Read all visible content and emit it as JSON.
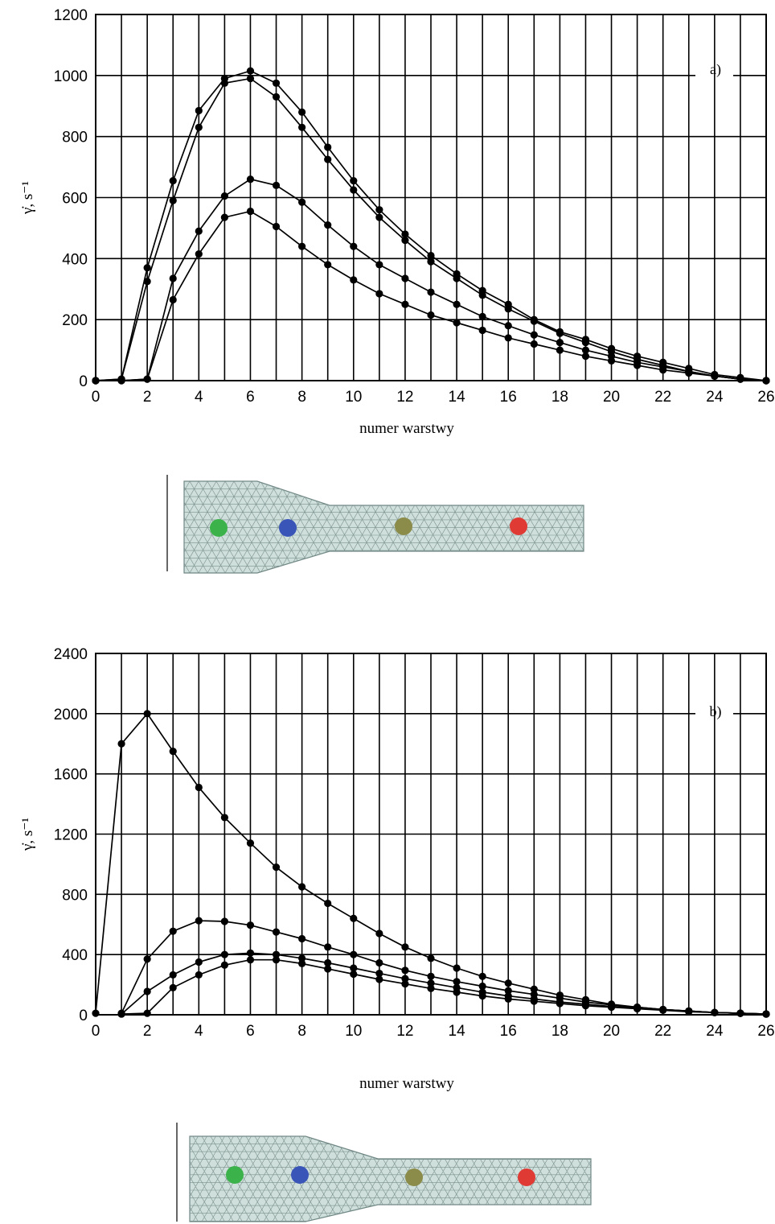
{
  "chart_data": [
    {
      "type": "line",
      "panel_label": "a)",
      "xlabel": "numer warstwy",
      "ylabel": "γ̇, s⁻¹",
      "xlim": [
        0,
        26
      ],
      "ylim": [
        0,
        1200
      ],
      "x_ticks": [
        0,
        2,
        4,
        6,
        8,
        10,
        12,
        14,
        16,
        18,
        20,
        22,
        24,
        26
      ],
      "y_ticks": [
        0,
        200,
        400,
        600,
        800,
        1000,
        1200
      ],
      "grid": true,
      "series": [
        {
          "x": [
            0,
            1,
            2,
            3,
            4,
            5,
            6,
            7,
            8,
            9,
            10,
            11,
            12,
            13,
            14,
            15,
            16,
            17,
            18,
            19,
            20,
            21,
            22,
            23,
            24,
            25,
            26
          ],
          "values": [
            0,
            5,
            370,
            655,
            885,
            990,
            1015,
            975,
            880,
            765,
            655,
            560,
            480,
            410,
            350,
            295,
            250,
            200,
            160,
            135,
            105,
            80,
            60,
            40,
            20,
            10,
            0
          ]
        },
        {
          "x": [
            0,
            1,
            2,
            3,
            4,
            5,
            6,
            7,
            8,
            9,
            10,
            11,
            12,
            13,
            14,
            15,
            16,
            17,
            18,
            19,
            20,
            21,
            22,
            23,
            24,
            25,
            26
          ],
          "values": [
            0,
            5,
            325,
            590,
            830,
            975,
            990,
            930,
            830,
            725,
            625,
            535,
            460,
            390,
            335,
            280,
            235,
            195,
            155,
            125,
            95,
            70,
            50,
            30,
            15,
            5,
            0
          ]
        },
        {
          "x": [
            0,
            1,
            2,
            3,
            4,
            5,
            6,
            7,
            8,
            9,
            10,
            11,
            12,
            13,
            14,
            15,
            16,
            17,
            18,
            19,
            20,
            21,
            22,
            23,
            24,
            25,
            26
          ],
          "values": [
            0,
            0,
            5,
            335,
            490,
            605,
            660,
            640,
            585,
            510,
            440,
            380,
            335,
            290,
            250,
            210,
            180,
            150,
            125,
            100,
            80,
            60,
            45,
            30,
            15,
            5,
            0
          ]
        },
        {
          "x": [
            0,
            1,
            2,
            3,
            4,
            5,
            6,
            7,
            8,
            9,
            10,
            11,
            12,
            13,
            14,
            15,
            16,
            17,
            18,
            19,
            20,
            21,
            22,
            23,
            24,
            25,
            26
          ],
          "values": [
            0,
            0,
            5,
            265,
            415,
            535,
            555,
            505,
            440,
            380,
            330,
            285,
            250,
            215,
            190,
            165,
            140,
            120,
            100,
            80,
            65,
            50,
            35,
            25,
            15,
            5,
            0
          ]
        }
      ]
    },
    {
      "type": "line",
      "panel_label": "b)",
      "xlabel": "numer warstwy",
      "ylabel": "γ̇, s⁻¹",
      "xlim": [
        0,
        26
      ],
      "ylim": [
        0,
        2400
      ],
      "x_ticks": [
        0,
        2,
        4,
        6,
        8,
        10,
        12,
        14,
        16,
        18,
        20,
        22,
        24,
        26
      ],
      "y_ticks": [
        0,
        400,
        800,
        1200,
        1600,
        2000,
        2400
      ],
      "grid": true,
      "series": [
        {
          "x": [
            0,
            1,
            2,
            3,
            4,
            5,
            6,
            7,
            8,
            9,
            10,
            11,
            12,
            13,
            14,
            15,
            16,
            17,
            18,
            19,
            20,
            21,
            22,
            23,
            24,
            25,
            26
          ],
          "values": [
            10,
            1800,
            2000,
            1750,
            1510,
            1310,
            1140,
            980,
            850,
            740,
            640,
            540,
            450,
            375,
            310,
            255,
            210,
            170,
            130,
            100,
            70,
            50,
            35,
            25,
            15,
            10,
            5
          ]
        },
        {
          "x": [
            1,
            2,
            3,
            4,
            5,
            6,
            7,
            8,
            9,
            10,
            11,
            12,
            13,
            14,
            15,
            16,
            17,
            18,
            19,
            20,
            21,
            22,
            23,
            24,
            25,
            26
          ],
          "values": [
            10,
            370,
            555,
            625,
            620,
            595,
            550,
            505,
            450,
            400,
            345,
            295,
            255,
            220,
            190,
            160,
            135,
            110,
            85,
            65,
            50,
            35,
            25,
            15,
            10,
            5
          ]
        },
        {
          "x": [
            1,
            2,
            3,
            4,
            5,
            6,
            7,
            8,
            9,
            10,
            11,
            12,
            13,
            14,
            15,
            16,
            17,
            18,
            19,
            20,
            21,
            22,
            23,
            24,
            25,
            26
          ],
          "values": [
            5,
            155,
            265,
            350,
            400,
            410,
            400,
            375,
            345,
            310,
            275,
            240,
            210,
            180,
            150,
            125,
            105,
            85,
            70,
            55,
            45,
            35,
            25,
            15,
            10,
            5
          ]
        },
        {
          "x": [
            1,
            2,
            3,
            4,
            5,
            6,
            7,
            8,
            9,
            10,
            11,
            12,
            13,
            14,
            15,
            16,
            17,
            18,
            19,
            20,
            21,
            22,
            23,
            24,
            25,
            26
          ],
          "values": [
            5,
            10,
            180,
            265,
            330,
            365,
            365,
            340,
            305,
            270,
            235,
            205,
            175,
            150,
            125,
            105,
            90,
            75,
            60,
            50,
            40,
            30,
            20,
            15,
            10,
            5
          ]
        }
      ]
    }
  ],
  "mesh_markers": {
    "colors": [
      "#3cb24a",
      "#3a55b8",
      "#8c8c4a",
      "#e03a35"
    ]
  }
}
